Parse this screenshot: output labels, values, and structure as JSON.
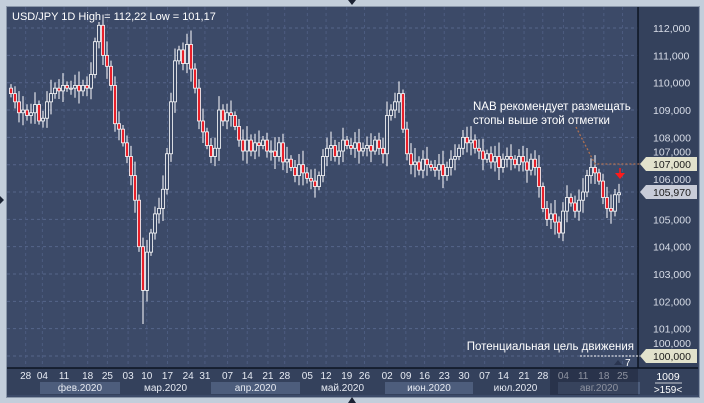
{
  "header": {
    "title": "USD/JPY 1D High = 112,22 Low = 101,17"
  },
  "annotations": {
    "stop_note_line1": "NAB рекомендует размещать",
    "stop_note_line2": "стопы выше этой отметки",
    "target_note": "Потенциальная цель движения",
    "counter": "7"
  },
  "price_tags": {
    "stop_level": "107,000",
    "current": "105,970",
    "target": "100,000"
  },
  "corner": {
    "bars": "1009",
    "scroll": ">159<"
  },
  "colors": {
    "background": "#3c4a68",
    "bullish": "#ffffff",
    "bearish": "#e8202a",
    "stop_line": "#b07050",
    "tag_beige": "#e2e2cc",
    "tag_gray": "#c8ccd8"
  },
  "chart_data": {
    "type": "candlestick",
    "title": "USD/JPY 1D High = 112,22 Low = 101,17",
    "ylim": [
      100,
      112.5
    ],
    "grid": true,
    "y_ticks": [
      "112,000",
      "111,000",
      "110,000",
      "109,000",
      "108,000",
      "107,000",
      "106,000",
      "105,000",
      "104,000",
      "103,000",
      "102,000",
      "101,000",
      "100,000"
    ],
    "x_ticks": [
      "28",
      "04",
      "11",
      "18",
      "25",
      "03",
      "10",
      "17",
      "24",
      "31",
      "07",
      "14",
      "21",
      "28",
      "05",
      "12",
      "19",
      "26",
      "02",
      "09",
      "16",
      "23",
      "30",
      "07",
      "14",
      "21",
      "28",
      "04",
      "11",
      "18",
      "25"
    ],
    "months": [
      "фев.2020",
      "мар.2020",
      "апр.2020",
      "май.2020",
      "июн.2020",
      "июл.2020",
      "авг.2020"
    ],
    "high": 112.22,
    "low": 101.17,
    "closes": [
      109.6,
      109.3,
      108.9,
      109.0,
      108.8,
      108.9,
      109.2,
      108.6,
      108.7,
      109.3,
      109.6,
      109.8,
      109.7,
      109.9,
      109.8,
      109.8,
      109.9,
      109.7,
      109.9,
      109.8,
      110.3,
      111.5,
      112.1,
      111.0,
      110.6,
      109.9,
      108.5,
      108.3,
      107.8,
      107.3,
      106.6,
      105.7,
      104.0,
      102.4,
      103.8,
      104.5,
      105.2,
      105.4,
      106.1,
      107.4,
      109.3,
      110.8,
      111.2,
      110.7,
      111.4,
      110.5,
      109.8,
      108.6,
      108.2,
      107.7,
      107.3,
      107.6,
      109.0,
      108.6,
      108.9,
      108.8,
      108.4,
      107.9,
      107.5,
      107.9,
      107.5,
      107.8,
      107.7,
      107.9,
      107.5,
      107.5,
      107.3,
      107.8,
      107.1,
      107.2,
      106.9,
      106.6,
      107.0,
      106.7,
      106.5,
      106.4,
      106.2,
      106.6,
      107.3,
      107.6,
      107.7,
      107.3,
      107.5,
      107.9,
      107.7,
      107.6,
      107.8,
      107.5,
      107.6,
      107.7,
      107.5,
      107.9,
      107.6,
      107.4,
      108.8,
      109.0,
      109.3,
      109.6,
      108.3,
      107.4,
      107.0,
      107.1,
      106.8,
      107.2,
      107.0,
      106.9,
      106.8,
      107.0,
      106.6,
      106.9,
      107.2,
      107.3,
      107.6,
      108.0,
      107.8,
      107.9,
      107.6,
      107.5,
      107.2,
      107.4,
      107.1,
      107.3,
      106.9,
      107.2,
      107.3,
      107.2,
      107.0,
      107.3,
      107.1,
      106.8,
      107.2,
      106.9,
      106.2,
      105.4,
      105.0,
      105.2,
      104.9,
      104.5,
      105.3,
      105.8,
      105.6,
      105.3,
      105.7,
      106.0,
      106.6,
      106.9,
      106.7,
      106.4,
      105.8,
      105.4,
      105.3,
      105.9,
      105.97
    ],
    "levels": {
      "stop": 107.0,
      "current": 105.97,
      "target": 100.0
    }
  }
}
